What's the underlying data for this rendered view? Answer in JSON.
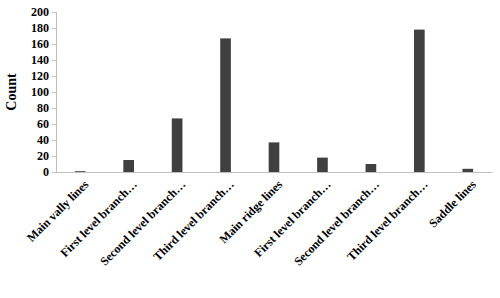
{
  "chart_data": {
    "type": "bar",
    "categories": [
      "Main vally lines",
      "First level branch…",
      "Second level branch…",
      "Third level branch…",
      "Main ridge lines",
      "First level branch…",
      "Second level branch…",
      "Third level branch…",
      "Saddle lines"
    ],
    "values": [
      1,
      15,
      67,
      167,
      37,
      18,
      10,
      178,
      4
    ],
    "color": "#404040",
    "y_label": "Count",
    "ylim": [
      0,
      200
    ],
    "yticks": [
      0,
      20,
      40,
      60,
      80,
      100,
      120,
      140,
      160,
      180,
      200
    ],
    "grid": false
  }
}
